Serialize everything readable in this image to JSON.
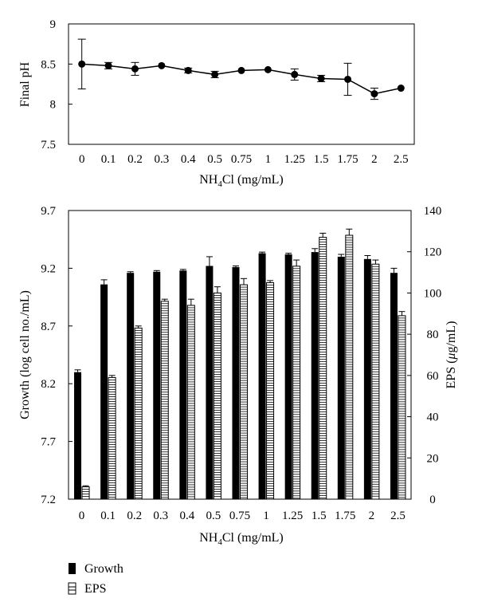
{
  "chart_data": [
    {
      "type": "line",
      "categories": [
        "0",
        "0.1",
        "0.2",
        "0.3",
        "0.4",
        "0.5",
        "0.75",
        "1",
        "1.25",
        "1.5",
        "1.75",
        "2",
        "2.5"
      ],
      "series": [
        {
          "values": [
            8.5,
            8.48,
            8.44,
            8.48,
            8.42,
            8.37,
            8.42,
            8.43,
            8.37,
            8.32,
            8.31,
            8.13,
            8.2
          ],
          "errors": [
            0.31,
            0.04,
            0.08,
            0.02,
            0.03,
            0.04,
            0.02,
            0.02,
            0.07,
            0.04,
            0.2,
            0.07,
            0.02
          ]
        }
      ],
      "ylabel": "Final pH",
      "xlabel_main": "NH",
      "xlabel_sub": "4",
      "xlabel_tail": "Cl (mg/mL)",
      "ylim": [
        7.5,
        9
      ],
      "yticks": [
        "7.5",
        "8",
        "8.5",
        "9"
      ],
      "grid": false
    },
    {
      "type": "bar",
      "categories": [
        "0",
        "0.1",
        "0.2",
        "0.3",
        "0.4",
        "0.5",
        "0.75",
        "1",
        "1.25",
        "1.5",
        "1.75",
        "2",
        "2.5"
      ],
      "series": [
        {
          "name": "Growth",
          "axis": "left",
          "values": [
            8.3,
            9.06,
            9.16,
            9.17,
            9.18,
            9.22,
            9.21,
            9.33,
            9.32,
            9.34,
            9.3,
            9.28,
            9.16
          ],
          "errors": [
            0.02,
            0.04,
            0.01,
            0.01,
            0.01,
            0.08,
            0.01,
            0.01,
            0.01,
            0.03,
            0.02,
            0.03,
            0.04
          ]
        },
        {
          "name": "EPS",
          "axis": "right",
          "values": [
            6,
            59,
            83,
            96,
            94,
            100,
            104,
            105,
            113,
            127,
            128,
            114,
            89
          ],
          "errors": [
            0.5,
            1,
            1,
            1,
            3,
            3,
            3,
            1,
            3,
            2,
            3,
            2,
            2
          ]
        }
      ],
      "ylabel_left": "Growth (log cell no./mL)",
      "ylabel_right_pre": "EPS (",
      "ylabel_right_mu": "μ",
      "ylabel_right_post": "g/mL)",
      "xlabel_main": "NH",
      "xlabel_sub": "4",
      "xlabel_tail": "Cl (mg/mL)",
      "ylim_left": [
        7.2,
        9.7
      ],
      "ylim_right": [
        0,
        140
      ],
      "yticks_left": [
        "7.2",
        "7.7",
        "8.2",
        "8.7",
        "9.2",
        "9.7"
      ],
      "yticks_right": [
        "0",
        "20",
        "40",
        "60",
        "80",
        "100",
        "120",
        "140"
      ],
      "legend": "bottom-left",
      "grid": false
    }
  ]
}
